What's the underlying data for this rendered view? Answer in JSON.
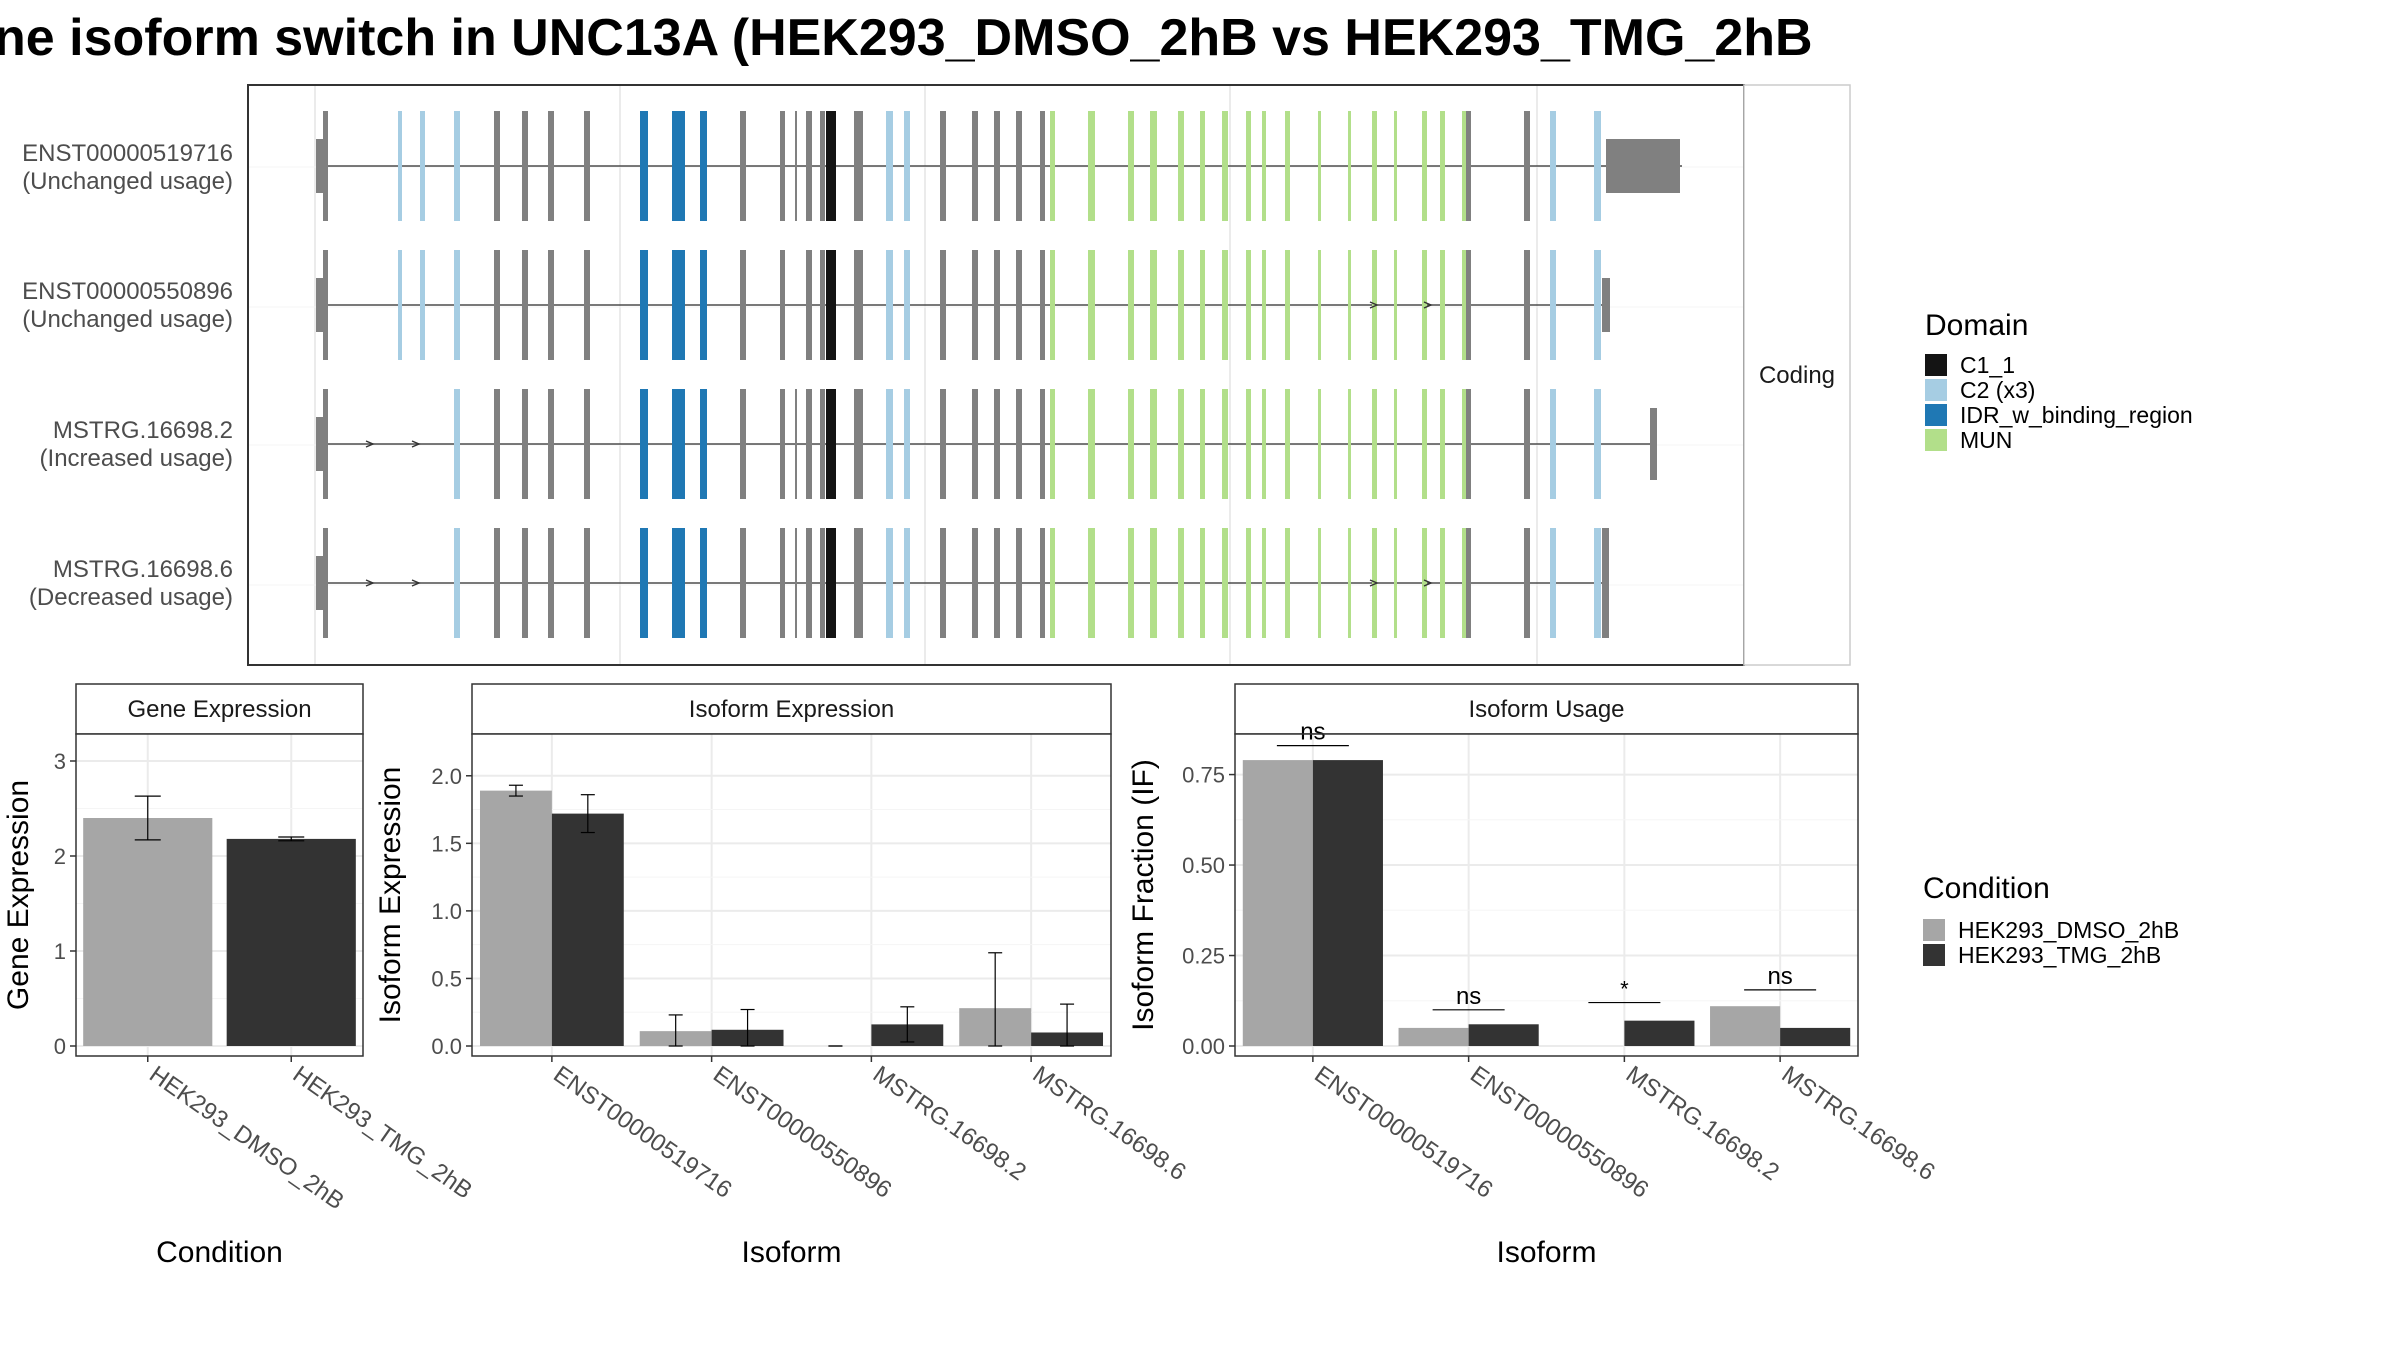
{
  "title": "ne isoform switch in UNC13A (HEK293_DMSO_2hB vs HEK293_TMG_2hB",
  "colors": {
    "C1_1": "#141414",
    "C2": "#a6cde3",
    "IDR": "#1f78b4",
    "MUN": "#b2df8a",
    "exon": "#808080",
    "DMSO": "#a6a6a6",
    "TMG": "#333333",
    "strip_bg": "#ffffff",
    "grid": "#ebebeb",
    "panel_border": "#333333"
  },
  "structure": {
    "strip_label": "Coding",
    "transcripts": [
      {
        "id": "ENST00000519716",
        "usage": "(Unchanged usage)"
      },
      {
        "id": "ENST00000550896",
        "usage": "(Unchanged usage)"
      },
      {
        "id": "MSTRG.16698.2",
        "usage": "(Increased usage)"
      },
      {
        "id": "MSTRG.16698.6",
        "usage": "(Decreased usage)"
      }
    ]
  },
  "legend_domain": {
    "title": "Domain",
    "items": [
      {
        "label": "C1_1",
        "color_key": "C1_1"
      },
      {
        "label": "C2 (x3)",
        "color_key": "C2"
      },
      {
        "label": "IDR_w_binding_region",
        "color_key": "IDR"
      },
      {
        "label": "MUN",
        "color_key": "MUN"
      }
    ]
  },
  "legend_condition": {
    "title": "Condition",
    "items": [
      {
        "label": "HEK293_DMSO_2hB",
        "color_key": "DMSO"
      },
      {
        "label": "HEK293_TMG_2hB",
        "color_key": "TMG"
      }
    ]
  },
  "chart_data": [
    {
      "type": "bar",
      "strip": "Gene Expression",
      "xlabel": "Condition",
      "ylabel": "Gene Expression",
      "ylim": [
        0,
        3.2
      ],
      "yticks": [
        0,
        1,
        2,
        3
      ],
      "categories": [
        "HEK293_DMSO_2hB",
        "HEK293_TMG_2hB"
      ],
      "values": [
        2.4,
        2.18
      ],
      "errors": [
        [
          2.17,
          2.63
        ],
        [
          2.16,
          2.2
        ]
      ]
    },
    {
      "type": "bar",
      "strip": "Isoform Expression",
      "xlabel": "Isoform",
      "ylabel": "Isoform Expression",
      "ylim": [
        0,
        2.25
      ],
      "yticks": [
        0.0,
        0.5,
        1.0,
        1.5,
        2.0
      ],
      "yticklabels": [
        "0.0",
        "0.5",
        "1.0",
        "1.5",
        "2.0"
      ],
      "categories": [
        "ENST00000519716",
        "ENST00000550896",
        "MSTRG.16698.2",
        "MSTRG.16698.6"
      ],
      "series": [
        {
          "name": "HEK293_DMSO_2hB",
          "values": [
            1.89,
            0.11,
            0.0,
            0.28
          ],
          "errors": [
            [
              1.85,
              1.93
            ],
            [
              0.0,
              0.23
            ],
            [
              0.0,
              0.0
            ],
            [
              0.0,
              0.69
            ]
          ]
        },
        {
          "name": "HEK293_TMG_2hB",
          "values": [
            1.72,
            0.12,
            0.16,
            0.1
          ],
          "errors": [
            [
              1.58,
              1.86
            ],
            [
              0.0,
              0.27
            ],
            [
              0.03,
              0.29
            ],
            [
              0.0,
              0.31
            ]
          ]
        }
      ]
    },
    {
      "type": "bar",
      "strip": "Isoform Usage",
      "xlabel": "Isoform",
      "ylabel": "Isoform Fraction (IF)",
      "ylim": [
        0,
        0.84
      ],
      "yticks": [
        0.0,
        0.25,
        0.5,
        0.75
      ],
      "yticklabels": [
        "0.00",
        "0.25",
        "0.50",
        "0.75"
      ],
      "categories": [
        "ENST00000519716",
        "ENST00000550896",
        "MSTRG.16698.2",
        "MSTRG.16698.6"
      ],
      "series": [
        {
          "name": "HEK293_DMSO_2hB",
          "values": [
            0.79,
            0.05,
            0.0,
            0.11
          ]
        },
        {
          "name": "HEK293_TMG_2hB",
          "values": [
            0.79,
            0.06,
            0.07,
            0.05
          ]
        }
      ],
      "significance": [
        {
          "label": "ns",
          "y": 0.83
        },
        {
          "label": "ns",
          "y": 0.1
        },
        {
          "label": "*",
          "y": 0.12
        },
        {
          "label": "ns",
          "y": 0.155
        }
      ]
    }
  ]
}
